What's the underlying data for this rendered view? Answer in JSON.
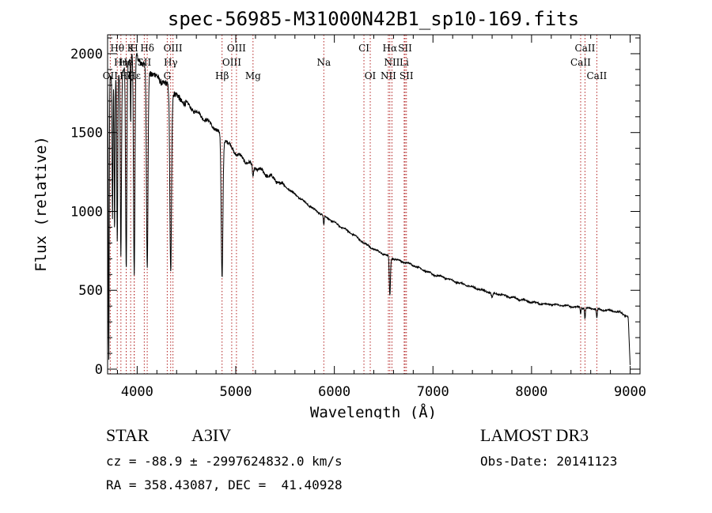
{
  "chart_data": {
    "type": "line",
    "title": "spec-56985-M31000N42B1_sp10-169.fits",
    "xlabel": "Wavelength (Å)",
    "ylabel": "Flux (relative)",
    "xlim": [
      3700,
      9100
    ],
    "ylim": [
      -30,
      2120
    ],
    "x_ticks": [
      4000,
      5000,
      6000,
      7000,
      8000,
      9000
    ],
    "x_tick_labels": [
      "4000",
      "5000",
      "6000",
      "7000",
      "8000",
      "9000"
    ],
    "y_ticks": [
      0,
      500,
      1000,
      1500,
      2000
    ],
    "y_tick_labels": [
      "0",
      "500",
      "1000",
      "1500",
      "2000"
    ],
    "x_minor_step": 200,
    "y_minor_step": 100,
    "series": [
      {
        "name": "flux",
        "continuum": [
          [
            3700,
            1850
          ],
          [
            3850,
            1880
          ],
          [
            3950,
            2000
          ],
          [
            4000,
            1980
          ],
          [
            4100,
            1900
          ],
          [
            4200,
            1850
          ],
          [
            4300,
            1800
          ],
          [
            4400,
            1730
          ],
          [
            4500,
            1680
          ],
          [
            4600,
            1630
          ],
          [
            4700,
            1580
          ],
          [
            4800,
            1520
          ],
          [
            4900,
            1450
          ],
          [
            5000,
            1370
          ],
          [
            5100,
            1320
          ],
          [
            5200,
            1280
          ],
          [
            5300,
            1240
          ],
          [
            5400,
            1200
          ],
          [
            5500,
            1160
          ],
          [
            5600,
            1110
          ],
          [
            5700,
            1060
          ],
          [
            5800,
            1010
          ],
          [
            5900,
            970
          ],
          [
            6000,
            930
          ],
          [
            6100,
            890
          ],
          [
            6200,
            850
          ],
          [
            6300,
            800
          ],
          [
            6400,
            760
          ],
          [
            6500,
            730
          ],
          [
            6600,
            700
          ],
          [
            6700,
            680
          ],
          [
            6800,
            660
          ],
          [
            6900,
            630
          ],
          [
            7000,
            600
          ],
          [
            7100,
            585
          ],
          [
            7200,
            560
          ],
          [
            7300,
            540
          ],
          [
            7400,
            520
          ],
          [
            7500,
            500
          ],
          [
            7600,
            485
          ],
          [
            7700,
            470
          ],
          [
            7800,
            455
          ],
          [
            7900,
            440
          ],
          [
            8000,
            425
          ],
          [
            8100,
            415
          ],
          [
            8200,
            410
          ],
          [
            8300,
            405
          ],
          [
            8400,
            398
          ],
          [
            8500,
            390
          ],
          [
            8600,
            385
          ],
          [
            8700,
            378
          ],
          [
            8800,
            370
          ],
          [
            8900,
            360
          ],
          [
            8980,
            330
          ],
          [
            9000,
            20
          ]
        ],
        "absorption": [
          {
            "wl": 3712,
            "depth": 1800,
            "width": 6
          },
          {
            "wl": 3750,
            "depth": 900,
            "width": 6
          },
          {
            "wl": 3771,
            "depth": 1000,
            "width": 6
          },
          {
            "wl": 3798,
            "depth": 1050,
            "width": 7
          },
          {
            "wl": 3835,
            "depth": 1150,
            "width": 8
          },
          {
            "wl": 3889,
            "depth": 1300,
            "width": 9
          },
          {
            "wl": 3934,
            "depth": 450,
            "width": 4
          },
          {
            "wl": 3970,
            "depth": 1400,
            "width": 10
          },
          {
            "wl": 4102,
            "depth": 1250,
            "width": 11
          },
          {
            "wl": 4340,
            "depth": 1150,
            "width": 12
          },
          {
            "wl": 4861,
            "depth": 900,
            "width": 12
          },
          {
            "wl": 5175,
            "depth": 70,
            "width": 10
          },
          {
            "wl": 5893,
            "depth": 60,
            "width": 6
          },
          {
            "wl": 6563,
            "depth": 250,
            "width": 8
          },
          {
            "wl": 7600,
            "depth": 30,
            "width": 12
          },
          {
            "wl": 8498,
            "depth": 40,
            "width": 5
          },
          {
            "wl": 8542,
            "depth": 70,
            "width": 6
          },
          {
            "wl": 8662,
            "depth": 60,
            "width": 6
          }
        ]
      }
    ],
    "line_markers": [
      {
        "label": "Hθ",
        "wl": 3798,
        "row": 0
      },
      {
        "label": "K",
        "wl": 3934,
        "row": 0
      },
      {
        "label": "H",
        "wl": 3970,
        "row": 0
      },
      {
        "label": "Hδ",
        "wl": 4102,
        "row": 0
      },
      {
        "label": "OIII",
        "wl": 4363,
        "row": 0
      },
      {
        "label": "OIII",
        "wl": 5007,
        "row": 0
      },
      {
        "label": "CI",
        "wl": 6300,
        "row": 0
      },
      {
        "label": "Hα",
        "wl": 6563,
        "row": 0
      },
      {
        "label": "SII",
        "wl": 6717,
        "row": 0
      },
      {
        "label": "CaII",
        "wl": 8542,
        "row": 0
      },
      {
        "label": "Hη",
        "wl": 3835,
        "row": 1
      },
      {
        "label": "He",
        "wl": 3889,
        "row": 1
      },
      {
        "label": "SII",
        "wl": 4072,
        "row": 1
      },
      {
        "label": "Hγ",
        "wl": 4340,
        "row": 1
      },
      {
        "label": "OIII",
        "wl": 4959,
        "row": 1
      },
      {
        "label": "Na",
        "wl": 5893,
        "row": 1
      },
      {
        "label": "NII",
        "wl": 6584,
        "row": 1
      },
      {
        "label": "Li",
        "wl": 6708,
        "row": 1
      },
      {
        "label": "CaII",
        "wl": 8498,
        "row": 1
      },
      {
        "label": "OII",
        "wl": 3727,
        "row": 2
      },
      {
        "label": "Hζ",
        "wl": 3889,
        "row": 2
      },
      {
        "label": "Hε",
        "wl": 3970,
        "row": 2
      },
      {
        "label": "G",
        "wl": 4305,
        "row": 2
      },
      {
        "label": "Hβ",
        "wl": 4861,
        "row": 2
      },
      {
        "label": "Mg",
        "wl": 5175,
        "row": 2
      },
      {
        "label": "OI",
        "wl": 6364,
        "row": 2
      },
      {
        "label": "NII",
        "wl": 6548,
        "row": 2
      },
      {
        "label": "SII",
        "wl": 6731,
        "row": 2
      },
      {
        "label": "CaII",
        "wl": 8662,
        "row": 2
      }
    ]
  },
  "info": {
    "object_class": "STAR",
    "subclass": "A3IV",
    "survey": "LAMOST DR3",
    "redshift_line": "cz = -88.9 ± -2997624832.0 km/s",
    "obs_date": "Obs-Date: 20141123",
    "coords": "RA = 358.43087, DEC =  41.40928"
  }
}
